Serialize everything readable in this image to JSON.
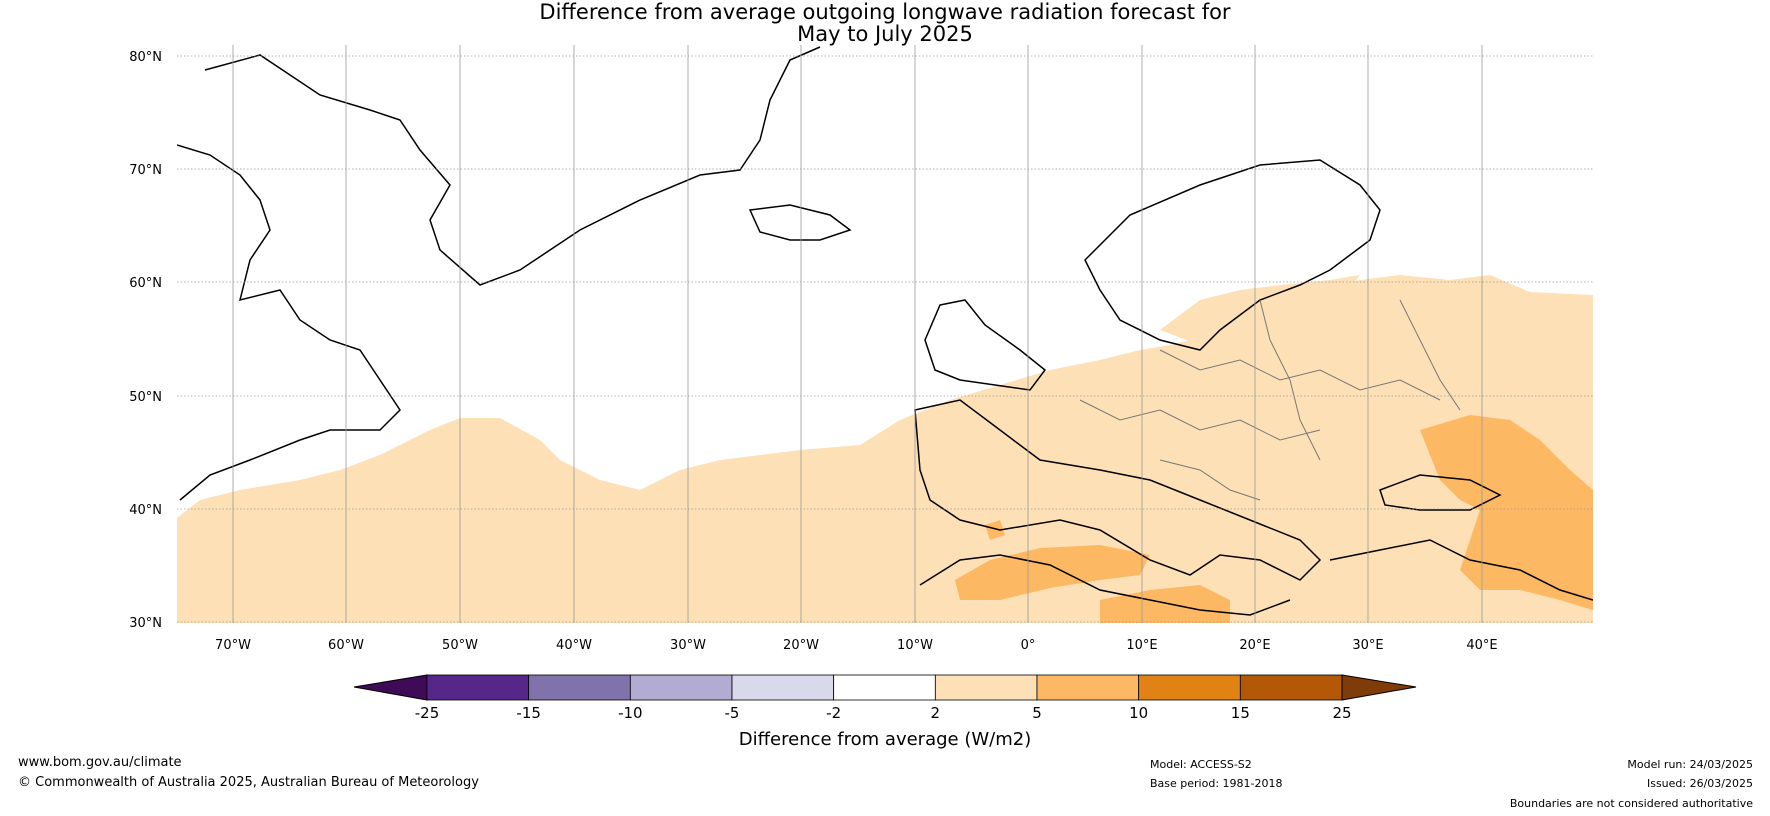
{
  "title": {
    "line1": "Difference from average outgoing longwave radiation forecast for",
    "line2": "May to July 2025"
  },
  "map": {
    "lat_labels": [
      "80°N",
      "70°N",
      "60°N",
      "50°N",
      "40°N",
      "30°N"
    ],
    "lon_labels": [
      "70°W",
      "60°W",
      "50°W",
      "40°W",
      "30°W",
      "20°W",
      "10°W",
      "0°",
      "10°E",
      "20°E",
      "30°E",
      "40°E"
    ],
    "projection_extent": {
      "lon": [
        -75,
        50
      ],
      "lat": [
        30,
        81
      ]
    }
  },
  "legend": {
    "title": "Difference from average (W/m2)",
    "tick_labels": [
      "-25",
      "-15",
      "-10",
      "-5",
      "-2",
      "2",
      "5",
      "10",
      "15",
      "25"
    ],
    "colors": {
      "below_min": "#3f0b57",
      "bins": [
        "#542788",
        "#8073ac",
        "#b2abd2",
        "#d8daeb",
        "#ffffff",
        "#fee0b6",
        "#fdb863",
        "#e08214",
        "#b35806"
      ],
      "above_max": "#7f3b08"
    }
  },
  "footer": {
    "website": "www.bom.gov.au/climate",
    "copyright": "© Commonwealth of Australia 2025, Australian Bureau of Meteorology",
    "model": "Model: ACCESS-S2",
    "base_period": "Base period: 1981-2018",
    "model_run": "Model run: 24/03/2025",
    "issued": "Issued: 26/03/2025",
    "disclaimer": "Boundaries are not considered authoritative"
  }
}
